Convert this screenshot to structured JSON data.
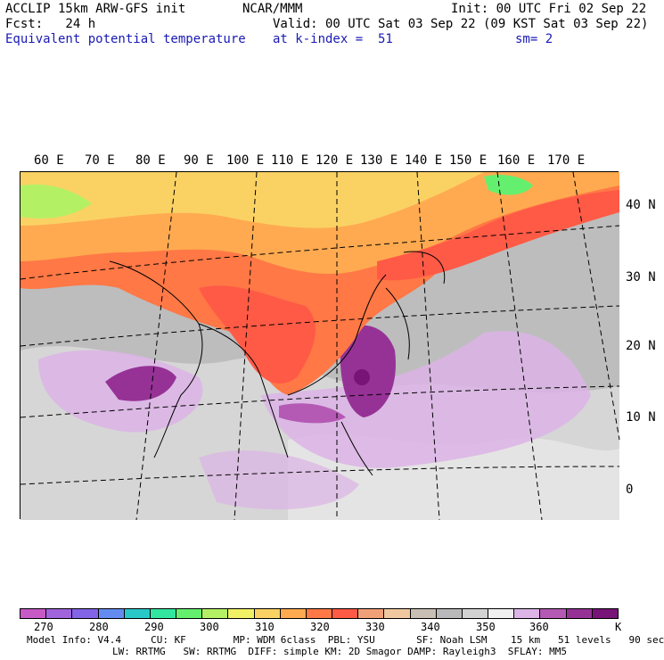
{
  "header": {
    "model_title": "ACCLIP 15km ARW-GFS init",
    "org": "NCAR/MMM",
    "init_time": "Init: 00 UTC Fri 02 Sep 22",
    "forecast": "Fcst:   24 h",
    "valid_time": "Valid: 00 UTC Sat 03 Sep 22 (09 KST Sat 03 Sep 22)",
    "field_name": "Equivalent potential temperature",
    "level": "at k-index =  51",
    "smoothing": "sm= 2"
  },
  "map": {
    "longitude_labels": [
      "60 E",
      "70 E",
      "80 E",
      "90 E",
      "100 E",
      "110 E",
      "120 E",
      "130 E",
      "140 E",
      "150 E",
      "160 E",
      "170 E"
    ],
    "latitude_labels": [
      "40 N",
      "30 N",
      "20 N",
      "10 N",
      "0"
    ]
  },
  "colorbar": {
    "colors": [
      "#c85ac8",
      "#a064dc",
      "#8264e6",
      "#648cf0",
      "#28c8c8",
      "#32e6a0",
      "#64f06e",
      "#b4f064",
      "#f0f064",
      "#fad264",
      "#ffaa50",
      "#ff7846",
      "#ff5a46",
      "#f0a078",
      "#f0c8a0",
      "#c8beb4",
      "#b9b9b9",
      "#d2d2d2",
      "#f0f0f0",
      "#dcb4e6",
      "#b45ab4",
      "#963296",
      "#781478"
    ],
    "labels": [
      "270",
      "280",
      "290",
      "300",
      "310",
      "320",
      "330",
      "340",
      "350",
      "360"
    ],
    "unit": "K"
  },
  "footer": {
    "line1": "Model Info: V4.4     CU: KF        MP: WDM 6class  PBL: YSU       SF: Noah LSM    15 km   51 levels   90 sec",
    "line2": "LW: RRTMG   SW: RRTMG  DIFF: simple KM: 2D Smagor DAMP: Rayleigh3  SFLAY: MM5"
  }
}
